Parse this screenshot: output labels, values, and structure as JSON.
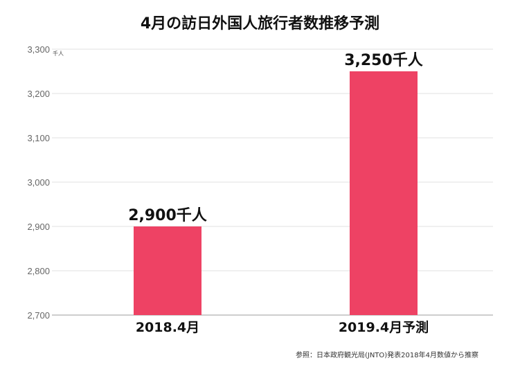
{
  "chart_data": {
    "type": "bar",
    "title": "4月の訪日外国人旅行者数推移予測",
    "unit_label": "千人",
    "categories": [
      "2018.4月",
      "2019.4月予測"
    ],
    "values": [
      2900,
      3250
    ],
    "data_labels": [
      "2,900千人",
      "3,250千人"
    ],
    "yticks": [
      "2,700",
      "2,800",
      "2,900",
      "3,000",
      "3,100",
      "3,200",
      "3,300"
    ],
    "ylim": [
      2700,
      3300
    ],
    "grid": true,
    "bar_color": "#ee4264",
    "source": "参照：日本政府観光局(JNTO)発表2018年4月数値から推察"
  }
}
